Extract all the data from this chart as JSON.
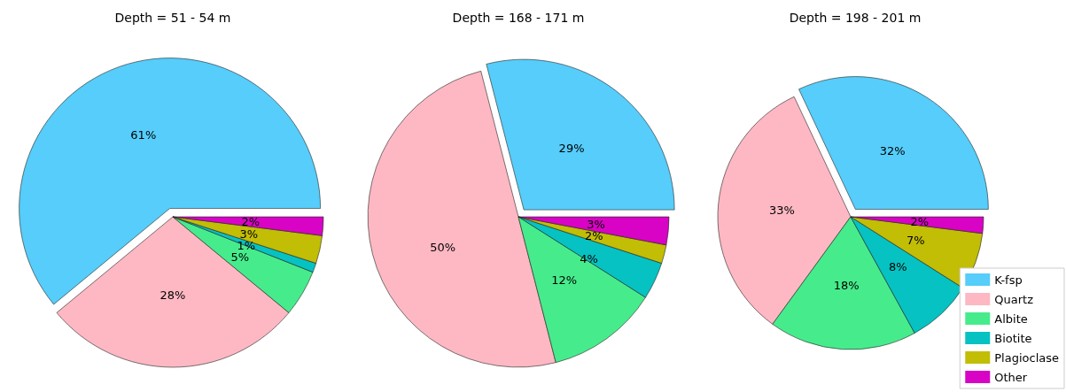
{
  "chart_data": [
    {
      "type": "pie",
      "title": "Depth = 51 - 54 m",
      "categories": [
        null,
        null,
        null,
        null,
        null,
        null
      ],
      "values": [
        61,
        28,
        5,
        1,
        3,
        2
      ],
      "value_labels": [
        "61%",
        "28%",
        "5%",
        "1%",
        "3%",
        "2%"
      ],
      "colors": [
        "#56cdfa",
        "#fdb8c3",
        "#46ec8c",
        "#06c2c2",
        "#c2bd05",
        "#d903c5"
      ]
    },
    {
      "type": "pie",
      "title": "Depth = 168 - 171 m",
      "categories": [
        null,
        null,
        null,
        null,
        null,
        null
      ],
      "values": [
        29,
        50,
        12,
        4,
        2,
        3
      ],
      "value_labels": [
        "29%",
        "50%",
        "12%",
        "4%",
        "2%",
        "3%"
      ],
      "colors": [
        "#56cdfa",
        "#fdb8c3",
        "#46ec8c",
        "#06c2c2",
        "#c2bd05",
        "#d903c5"
      ]
    },
    {
      "type": "pie",
      "title": "Depth = 198 - 201 m",
      "categories": [
        "K-fsp",
        "Quartz",
        "Albite",
        "Biotite",
        "Plagioclase",
        "Other"
      ],
      "values": [
        32,
        33,
        18,
        8,
        7,
        2
      ],
      "value_labels": [
        "32%",
        "33%",
        "18%",
        "8%",
        "7%",
        "2%"
      ],
      "colors": [
        "#56cdfa",
        "#fdb8c3",
        "#46ec8c",
        "#06c2c2",
        "#c2bd05",
        "#d903c5"
      ],
      "legend": "bottom right"
    }
  ]
}
